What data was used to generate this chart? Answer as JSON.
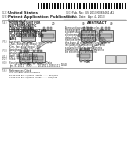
{
  "page_bg": "#ffffff",
  "barcode_color": "#111111",
  "text_color": "#222222",
  "light_text": "#666666",
  "separator_color": "#888888",
  "diagram_line_color": "#444444",
  "contactor_face": "#cccccc",
  "contactor_dark": "#999999",
  "contactor_edge": "#333333",
  "contactor_mid": "#bbbbbb",
  "fields": [
    [
      "(12)",
      "United States"
    ],
    [
      "(19)",
      "Patent Application Publication"
    ],
    [
      "",
      "Gerber et al."
    ]
  ],
  "right_header": [
    [
      "(10)",
      "Pub. No.:  US 2012/0000000 A1"
    ],
    [
      "(43)",
      "Pub. Date:  Jan. 25, 2012"
    ]
  ],
  "left_fields": [
    [
      "(54)",
      "MOUNTING UNIT FOR\nELECTROMAGNETIC\nCONTACTOR AND\nCONNECTION STRUCTURE\nOF ELECTROMAGNETIC\nCONTACTOR USING THE\nSAME"
    ],
    [
      "(75)",
      "Inventors: Choi et al.,\nCheongju-si (KR)"
    ],
    [
      "(73)",
      "Assignee: LSIS CO., LTD.,\nAnyang-si (KR)"
    ],
    [
      "(21)",
      "Appl. No.: 13/370,564"
    ],
    [
      "(22)",
      "Filed:        Feb. 10, 2012"
    ],
    [
      "(30)",
      "Foreign Application Priority\nData"
    ],
    [
      "",
      "Jun. 8, 2011 (KR)  10-2011-0055111"
    ]
  ],
  "abstract_title": "ABSTRACT",
  "abstract_lines": [
    "A mounting unit for an elec-",
    "tromagnetic contactor includes",
    "a plate-shaped base where an",
    "electromagnetic contactor is",
    "detachably mounted and a con-",
    "nection terminal protruded from",
    "the base. A connection structure",
    "includes the mounting unit and",
    "a plurality of electromagnetic",
    "contactors mounted thereon to",
    "be electrically connected."
  ],
  "fig_label_bottom": "(1/4)"
}
